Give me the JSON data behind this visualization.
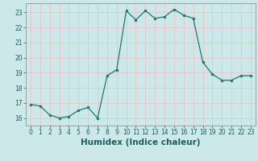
{
  "x": [
    0,
    1,
    2,
    3,
    4,
    5,
    6,
    7,
    8,
    9,
    10,
    11,
    12,
    13,
    14,
    15,
    16,
    17,
    18,
    19,
    20,
    21,
    22,
    23
  ],
  "y": [
    16.9,
    16.8,
    16.2,
    16.0,
    16.1,
    16.5,
    16.7,
    16.0,
    18.8,
    19.2,
    23.1,
    22.5,
    23.1,
    22.6,
    22.7,
    23.2,
    22.8,
    22.6,
    19.7,
    18.9,
    18.5,
    18.5,
    18.8,
    18.8
  ],
  "line_color": "#1a7a6e",
  "marker_color": "#1a7a6e",
  "bg_color": "#cce8e8",
  "grid_color": "#e8c8c8",
  "xlabel": "Humidex (Indice chaleur)",
  "ylim": [
    15.5,
    23.6
  ],
  "xlim": [
    -0.5,
    23.5
  ],
  "yticks": [
    16,
    17,
    18,
    19,
    20,
    21,
    22,
    23
  ],
  "xticks": [
    0,
    1,
    2,
    3,
    4,
    5,
    6,
    7,
    8,
    9,
    10,
    11,
    12,
    13,
    14,
    15,
    16,
    17,
    18,
    19,
    20,
    21,
    22,
    23
  ],
  "tick_label_fontsize": 5.5,
  "xlabel_fontsize": 7.5,
  "marker_size": 2.0,
  "line_width": 0.9
}
